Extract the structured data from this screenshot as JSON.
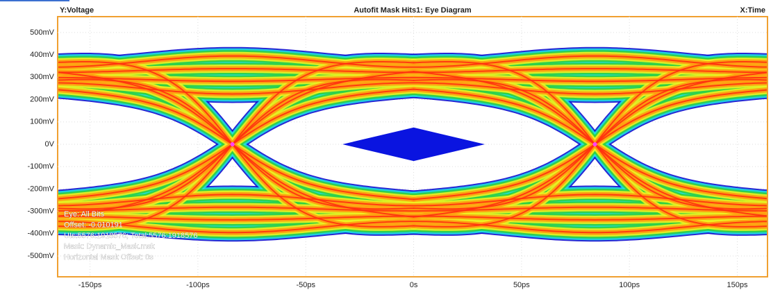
{
  "chart_data": {
    "type": "eye",
    "title": "Autofit Mask Hits1: Eye Diagram",
    "ylabel": "Y:Voltage",
    "xlabel": "X:Time",
    "xlim": [
      -165,
      164
    ],
    "ylim": [
      -593,
      571
    ],
    "xticks": [
      {
        "value": -150,
        "label": "-150ps"
      },
      {
        "value": -100,
        "label": "-100ps"
      },
      {
        "value": -50,
        "label": "-50ps"
      },
      {
        "value": 0,
        "label": "0s"
      },
      {
        "value": 50,
        "label": "50ps"
      },
      {
        "value": 100,
        "label": "100ps"
      },
      {
        "value": 150,
        "label": "150ps"
      }
    ],
    "yticks": [
      {
        "value": 500,
        "label": "500mV"
      },
      {
        "value": 400,
        "label": "400mV"
      },
      {
        "value": 300,
        "label": "300mV"
      },
      {
        "value": 200,
        "label": "200mV"
      },
      {
        "value": 100,
        "label": "100mV"
      },
      {
        "value": 0,
        "label": "0V"
      },
      {
        "value": -100,
        "label": "-100mV"
      },
      {
        "value": -200,
        "label": "-200mV"
      },
      {
        "value": -300,
        "label": "-300mV"
      },
      {
        "value": -400,
        "label": "-400mV"
      },
      {
        "value": -500,
        "label": "-500mV"
      }
    ],
    "grid": true,
    "info": [
      "Eye: All Bits",
      "Offset: -0.010191",
      "UIs:5576:1918576; Total:5576:1918576",
      "Mask: Dynamic_Mask.msk",
      "Horizontal Mask Offset: 0s"
    ]
  }
}
